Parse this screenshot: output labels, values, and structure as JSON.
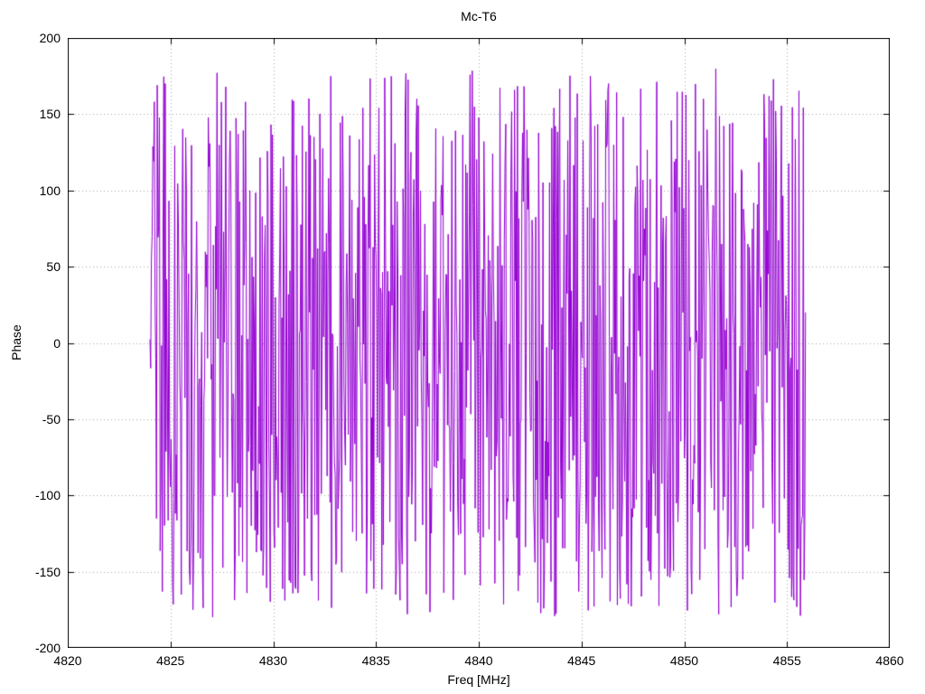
{
  "chart_data": {
    "type": "line",
    "title": "Mc-T6",
    "xlabel": "Freq [MHz]",
    "ylabel": "Phase",
    "xlim": [
      4820,
      4860
    ],
    "ylim": [
      -200,
      200
    ],
    "x_ticks": [
      4820,
      4825,
      4830,
      4835,
      4840,
      4845,
      4850,
      4855,
      4860
    ],
    "y_ticks": [
      -200,
      -150,
      -100,
      -50,
      0,
      50,
      100,
      150,
      200
    ],
    "grid": "dotted",
    "legend": "none",
    "series": [
      {
        "name": "phase",
        "color": "#9400d3",
        "description": "Wrapped phase vs frequency; dense noise-like trace uniformly distributed between -180 and +180 degrees, connected point-to-point",
        "x_start": 4824.0,
        "x_end": 4855.9,
        "n_points": 900,
        "y_min": -180,
        "y_max": 180,
        "synthesis": "uniform-random",
        "seed": 20240917
      }
    ],
    "colors": {
      "line": "#9400d3",
      "grid": "#a8a8a8",
      "axis": "#000000",
      "background": "#ffffff",
      "text": "#000000"
    }
  }
}
